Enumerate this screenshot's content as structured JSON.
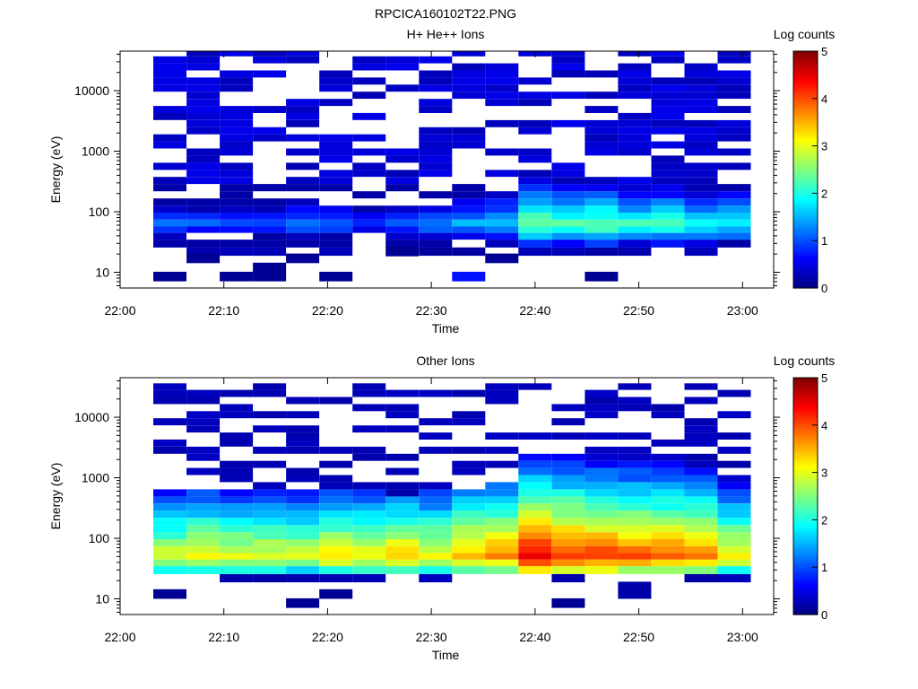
{
  "figure_title": "RPCICA160102T22.PNG",
  "chart_data": [
    {
      "type": "heatmap",
      "title": "H+ He++ Ions",
      "xlabel": "Time",
      "ylabel": "Energy (eV)",
      "colorbar_label": "Log counts",
      "x_ticks": [
        "22:00",
        "22:10",
        "22:20",
        "22:30",
        "22:40",
        "22:50",
        "23:00"
      ],
      "y_ticks": [
        "10",
        "100",
        "1000",
        "10000"
      ],
      "y_scale": "log",
      "ylim": [
        5.5,
        45000
      ],
      "xlim_minutes": [
        0,
        63
      ],
      "colorbar_range": [
        0,
        5
      ],
      "colorbar_ticks": [
        "0",
        "1",
        "2",
        "3",
        "4",
        "5"
      ],
      "time_bins_start_minutes": [
        3.2,
        6.4,
        9.6,
        12.8,
        16.0,
        19.2,
        22.4,
        25.6,
        28.8,
        32.0,
        35.2,
        38.4,
        41.6,
        44.8,
        48.0,
        51.2,
        54.4,
        57.6
      ],
      "time_bin_width_minutes": 3.2,
      "energy_bins_eV": [
        22,
        30,
        40,
        50,
        65,
        85,
        110,
        145,
        190,
        250,
        330,
        430,
        560,
        740,
        970,
        1270,
        1660,
        2180,
        2850,
        3740,
        4900,
        6400,
        8400,
        11000,
        14400,
        18900,
        24700,
        32400,
        42000
      ],
      "background_level": 0.3,
      "low_energy_events": [
        {
          "t": 3.2,
          "e": 8.5,
          "v": 0.1
        },
        {
          "t": 9.6,
          "e": 8.5,
          "v": 0.1
        },
        {
          "t": 12.8,
          "e": 8.5,
          "v": 0.1
        },
        {
          "t": 12.8,
          "e": 12,
          "v": 0.1
        },
        {
          "t": 19.2,
          "e": 8.5,
          "v": 0.1
        },
        {
          "t": 32.0,
          "e": 8.5,
          "v": 0.7
        },
        {
          "t": 35.2,
          "e": 17,
          "v": 0.1
        },
        {
          "t": 44.8,
          "e": 8.5,
          "v": 0.1
        },
        {
          "t": 6.4,
          "e": 17,
          "v": 0.1
        },
        {
          "t": 16.0,
          "e": 17,
          "v": 0.1
        },
        {
          "t": 25.6,
          "e": 22,
          "v": 0.1
        }
      ],
      "core_peak_eV": 60,
      "core_peak_log_counts": [
        1.3,
        1.1,
        1.0,
        1.2,
        1.3,
        1.2,
        1.0,
        1.3,
        1.4,
        1.6,
        1.8,
        2.6,
        2.4,
        2.5,
        2.2,
        2.3,
        2.1,
        2.0
      ]
    },
    {
      "type": "heatmap",
      "title": "Other Ions",
      "xlabel": "Time",
      "ylabel": "Energy (eV)",
      "colorbar_label": "Log counts",
      "x_ticks": [
        "22:00",
        "22:10",
        "22:20",
        "22:30",
        "22:40",
        "22:50",
        "23:00"
      ],
      "y_ticks": [
        "10",
        "100",
        "1000",
        "10000"
      ],
      "y_scale": "log",
      "ylim": [
        5.5,
        45000
      ],
      "xlim_minutes": [
        0,
        63
      ],
      "colorbar_range": [
        0,
        5
      ],
      "colorbar_ticks": [
        "0",
        "1",
        "2",
        "3",
        "4",
        "5"
      ],
      "time_bins_start_minutes": [
        3.2,
        6.4,
        9.6,
        12.8,
        16.0,
        19.2,
        22.4,
        25.6,
        28.8,
        32.0,
        35.2,
        38.4,
        41.6,
        44.8,
        48.0,
        51.2,
        54.4,
        57.6
      ],
      "time_bin_width_minutes": 3.2,
      "energy_bins_eV": [
        22,
        30,
        40,
        50,
        65,
        85,
        110,
        145,
        190,
        250,
        330,
        430,
        560,
        740,
        970,
        1270,
        1660,
        2180,
        2850,
        3740,
        4900,
        6400,
        8400,
        11000,
        14400,
        18900,
        24700,
        32400
      ],
      "background_level": 0.3,
      "low_energy_events": [
        {
          "t": 3.2,
          "e": 12,
          "v": 0.1
        },
        {
          "t": 16.0,
          "e": 8.5,
          "v": 0.1
        },
        {
          "t": 19.2,
          "e": 12,
          "v": 0.1
        },
        {
          "t": 41.6,
          "e": 8.5,
          "v": 0.1
        },
        {
          "t": 48.0,
          "e": 12,
          "v": 0.2
        },
        {
          "t": 48.0,
          "e": 16,
          "v": 0.2
        }
      ],
      "core_peak_eV": 50,
      "core_peak_log_counts": [
        3.0,
        3.2,
        3.1,
        3.1,
        3.0,
        3.3,
        3.2,
        3.4,
        3.2,
        3.6,
        3.7,
        4.4,
        4.2,
        4.1,
        4.0,
        3.9,
        3.8,
        3.3
      ],
      "core_upper_edge_eV": [
        600,
        600,
        600,
        600,
        600,
        600,
        600,
        500,
        600,
        700,
        800,
        2500,
        2500,
        2500,
        2500,
        2500,
        2500,
        2000
      ]
    }
  ]
}
